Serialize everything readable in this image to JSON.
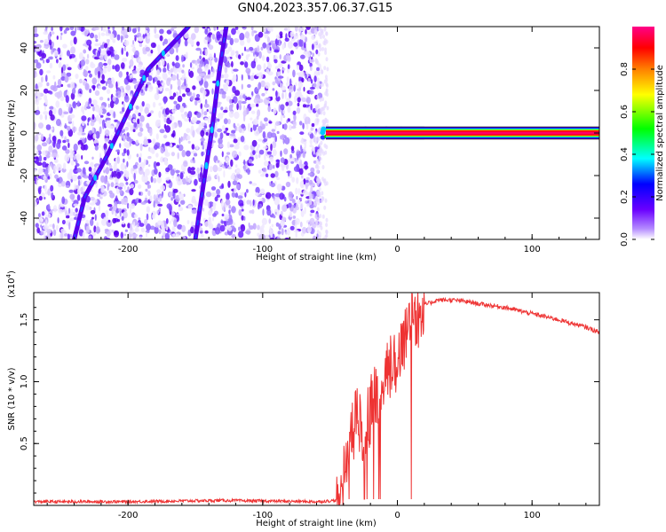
{
  "title": "GN04.2023.357.06.37.G15",
  "chart_data": [
    {
      "type": "heatmap",
      "xlabel": "Height of straight line (km)",
      "ylabel": "Frequency (Hz)",
      "xlim": [
        -270,
        150
      ],
      "ylim": [
        -50,
        50
      ],
      "xticks": [
        -200,
        -100,
        0,
        100
      ],
      "yticks": [
        -40,
        -20,
        0,
        20,
        40
      ],
      "colorbar": {
        "label": "Normalized spectral amplitude",
        "range": [
          0,
          1
        ],
        "ticks": [
          "0.0",
          "0.2",
          "0.4",
          "0.6",
          "0.8"
        ],
        "ticks_values": [
          0.0,
          0.2,
          0.4,
          0.6,
          0.8
        ],
        "colors": [
          "#ffffff",
          "#8800ff",
          "#0000ff",
          "#00ffff",
          "#00ff00",
          "#ffff00",
          "#ff8800",
          "#ff0000",
          "#ff0088"
        ]
      },
      "noise_region_x": [
        -270,
        -57
      ],
      "tracks": [
        {
          "x": [
            -240,
            -232,
            -215,
            -200,
            -185,
            -170,
            -155
          ],
          "y": [
            -50,
            -30,
            -10,
            10,
            30,
            40,
            50
          ]
        },
        {
          "x": [
            -150,
            -143,
            -138,
            -132,
            -127
          ],
          "y": [
            -50,
            -20,
            0,
            30,
            50
          ]
        }
      ],
      "signal_band": {
        "x": [
          -57,
          150
        ],
        "y_center": 0,
        "half_width": 1.2
      }
    },
    {
      "type": "line",
      "xlabel": "Height of straight line (km)",
      "ylabel": "SNR (10 * v/v)",
      "y_exponent_label": "(x10",
      "y_exponent": "4",
      "xlim": [
        -270,
        150
      ],
      "ylim": [
        0,
        1.72
      ],
      "xticks": [
        -200,
        -100,
        0,
        100
      ],
      "yticks": [
        0.5,
        1.0,
        1.5
      ],
      "ytick_labels": [
        "0.5",
        "1.0",
        "1.5"
      ],
      "series": [
        {
          "color": "#ee3333",
          "x": [
            -270,
            -200,
            -130,
            -60,
            -45,
            -40,
            -35,
            -30,
            -25,
            -20,
            -15,
            -10,
            -5,
            0,
            5,
            10,
            15,
            20,
            25,
            30,
            40,
            50,
            60,
            80,
            100,
            120,
            140,
            150
          ],
          "y": [
            0.03,
            0.03,
            0.04,
            0.03,
            0.04,
            0.2,
            0.55,
            0.75,
            0.6,
            0.8,
            0.85,
            0.95,
            1.1,
            1.2,
            1.35,
            1.5,
            1.58,
            1.62,
            1.64,
            1.66,
            1.66,
            1.65,
            1.63,
            1.6,
            1.55,
            1.5,
            1.44,
            1.4
          ]
        }
      ]
    }
  ]
}
